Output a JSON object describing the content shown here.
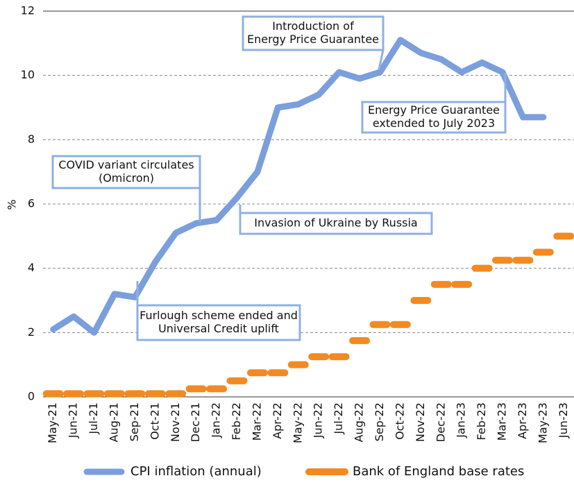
{
  "chart_data": {
    "type": "line",
    "y_label": "%",
    "categories": [
      "May-21",
      "Jun-21",
      "Jul-21",
      "Aug-21",
      "Sep-21",
      "Oct-21",
      "Nov-21",
      "Dec-21",
      "Jan-22",
      "Feb-22",
      "Mar-22",
      "Apr-22",
      "May-22",
      "Jun-22",
      "Jul-22",
      "Aug-22",
      "Sep-22",
      "Oct-22",
      "Nov-22",
      "Dec-22",
      "Jan-23",
      "Feb-23",
      "Mar-23",
      "Apr-23",
      "May-23",
      "Jun-23"
    ],
    "series": [
      {
        "name": "CPI inflation (annual)",
        "color": "#7b9fdc",
        "style": "line",
        "values": [
          2.1,
          2.5,
          2.0,
          3.2,
          3.1,
          4.2,
          5.1,
          5.4,
          5.5,
          6.2,
          7.0,
          9.0,
          9.1,
          9.4,
          10.1,
          9.9,
          10.1,
          11.1,
          10.7,
          10.5,
          10.1,
          10.4,
          10.1,
          8.7,
          8.7,
          null
        ]
      },
      {
        "name": "Bank of England base rates",
        "color": "#f28a22",
        "style": "dash",
        "values": [
          0.1,
          0.1,
          0.1,
          0.1,
          0.1,
          0.1,
          0.1,
          0.25,
          0.25,
          0.5,
          0.75,
          0.75,
          1.0,
          1.25,
          1.25,
          1.75,
          2.25,
          2.25,
          3.0,
          3.5,
          3.5,
          4.0,
          4.25,
          4.25,
          4.5,
          5.0
        ]
      }
    ],
    "ylim": [
      0,
      12
    ],
    "yticks": [
      0,
      2,
      4,
      6,
      8,
      10,
      12
    ],
    "grid": true,
    "annotations": [
      {
        "text": [
          "Introduction of",
          "Energy Price Guarantee"
        ]
      },
      {
        "text": [
          "Energy Price Guarantee",
          "extended to July 2023"
        ]
      },
      {
        "text": [
          "COVID variant circulates",
          "(Omicron)"
        ]
      },
      {
        "text": [
          "Invasion of Ukraine by Russia"
        ]
      },
      {
        "text": [
          "Furlough scheme ended and",
          "Universal Credit uplift"
        ]
      }
    ]
  }
}
